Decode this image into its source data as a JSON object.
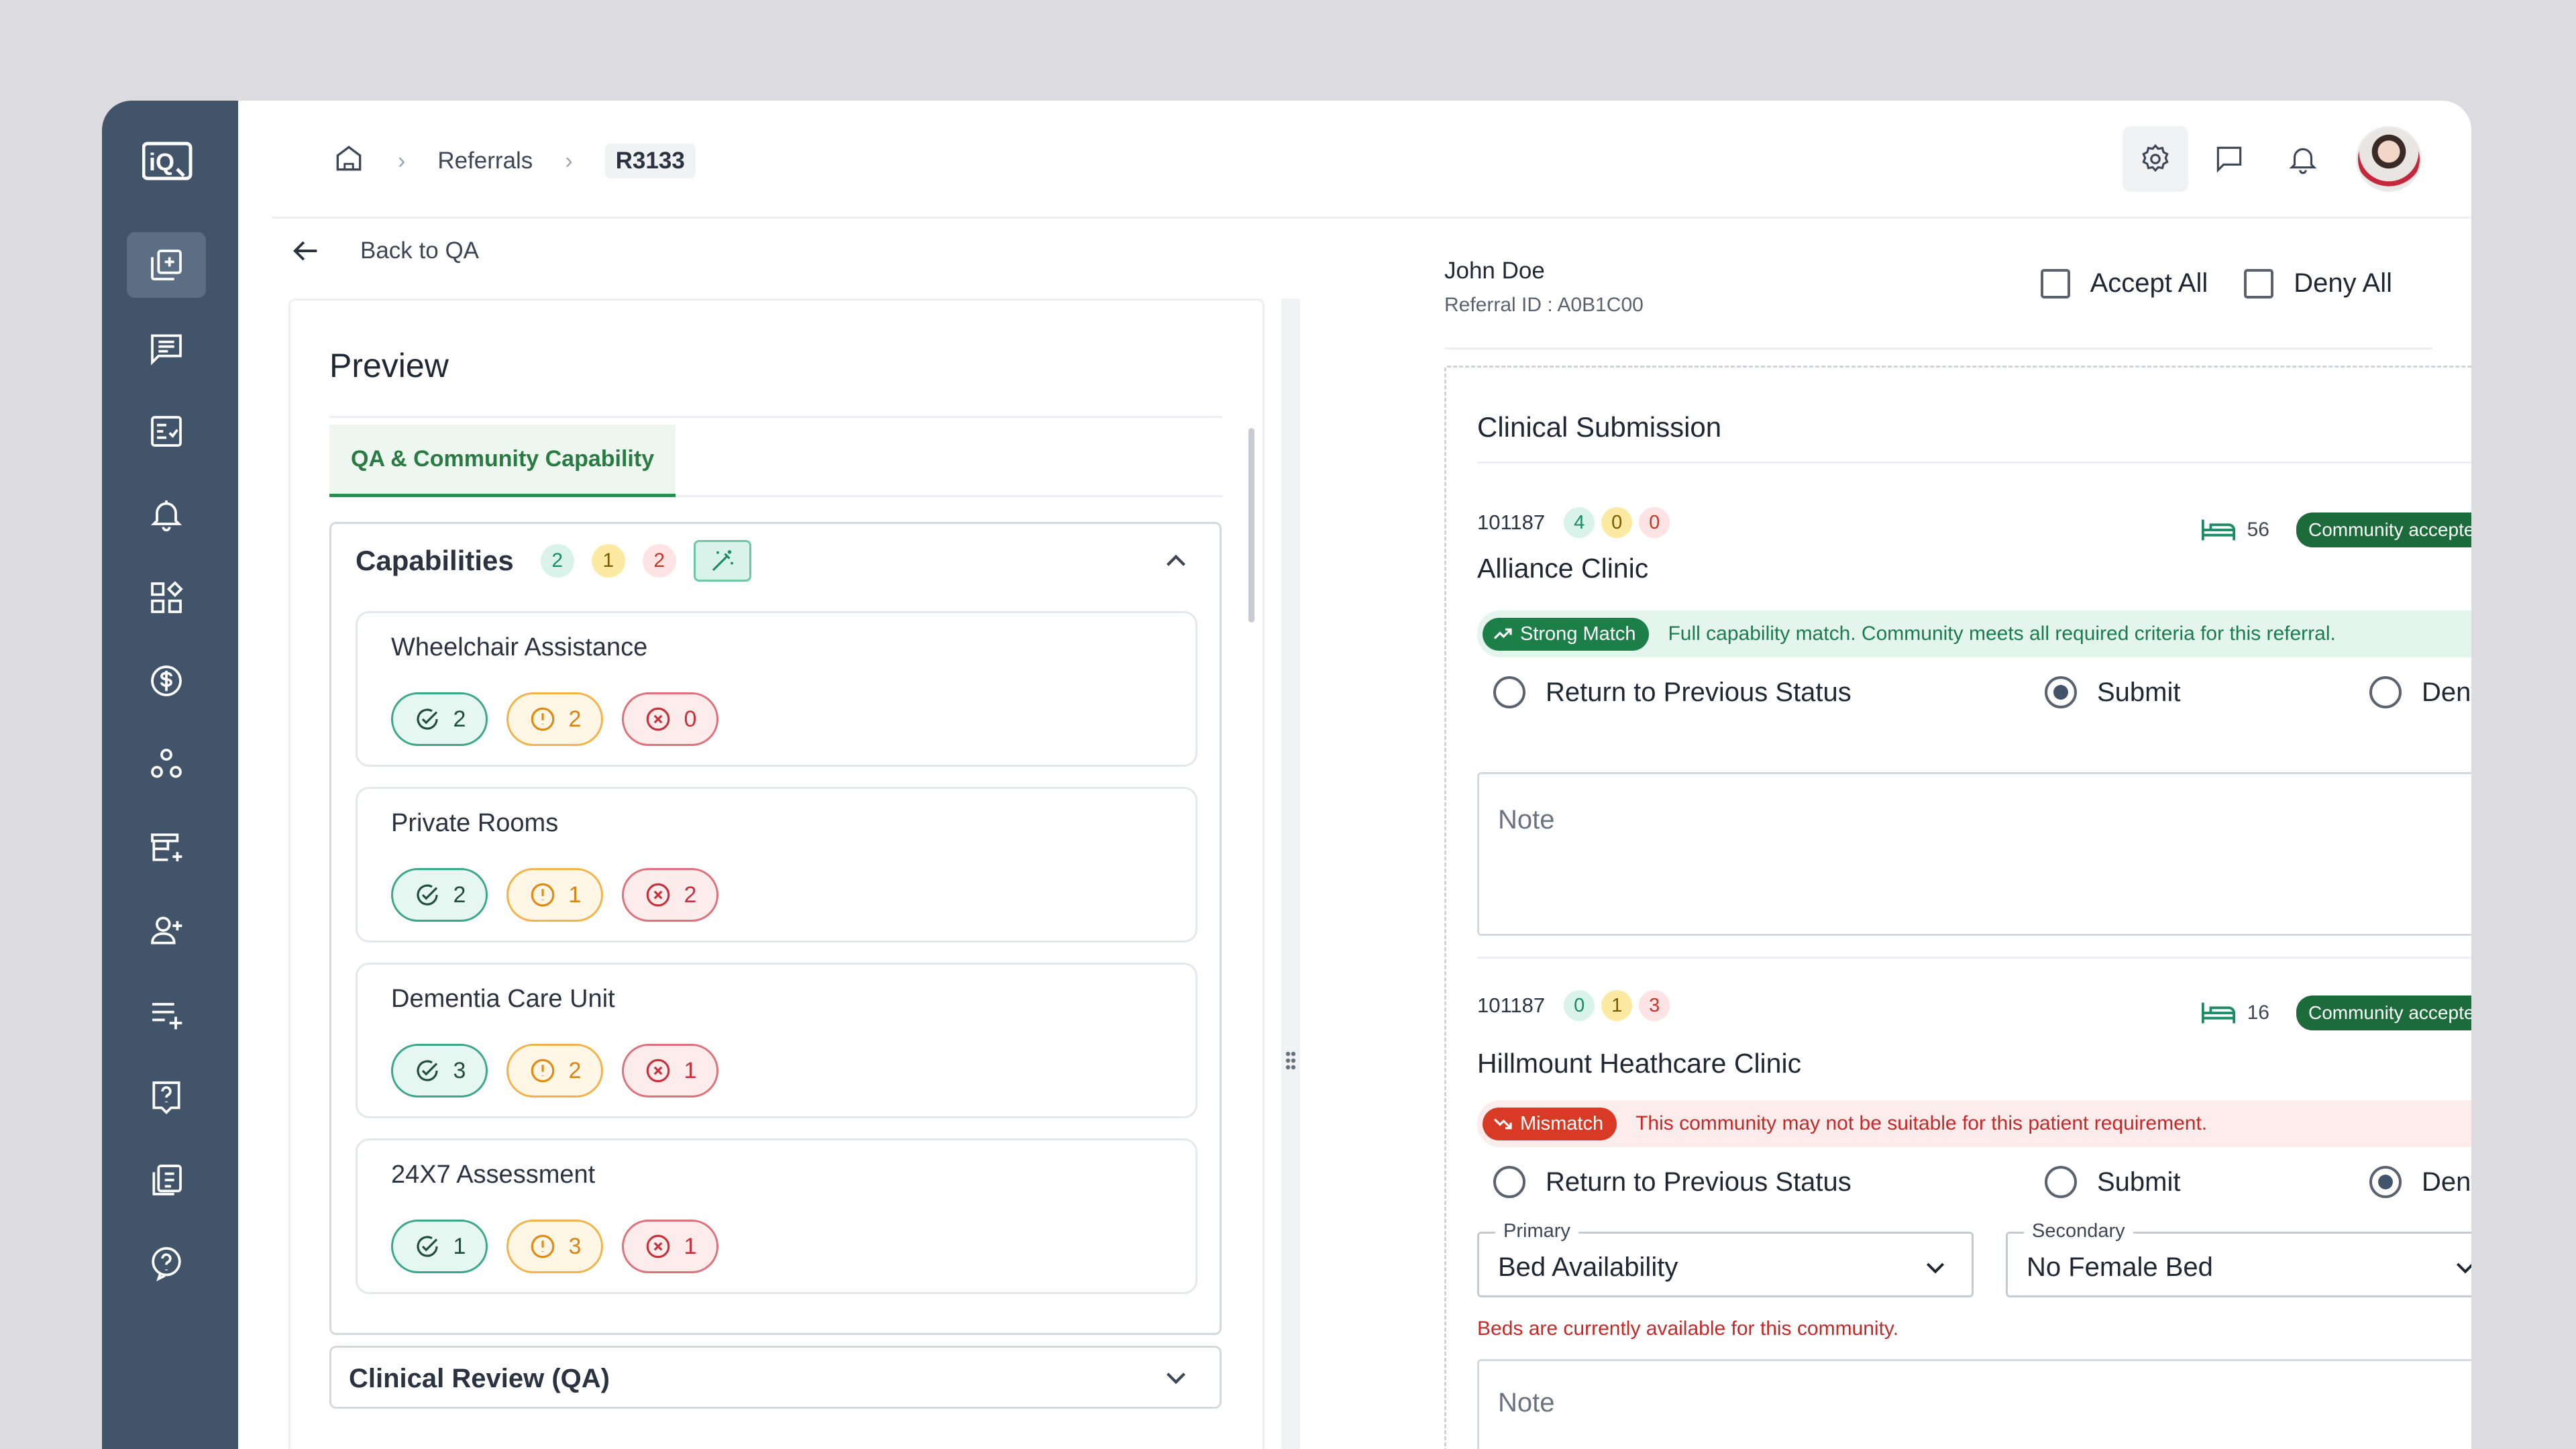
{
  "breadcrumb": {
    "home_icon": "home-icon",
    "items": [
      "Referrals",
      "R3133"
    ]
  },
  "back_label": "Back to QA",
  "sidebar_icons": [
    "add-document-icon",
    "messages-icon",
    "tasks-icon",
    "bell-icon",
    "widgets-icon",
    "dollar-icon",
    "community-icon",
    "store-add-icon",
    "add-user-icon",
    "list-add-icon",
    "help-box-icon",
    "report-icon",
    "help-circle-icon"
  ],
  "preview": {
    "title": "Preview",
    "tab": "QA & Community Capability",
    "capabilities": {
      "title": "Capabilities",
      "counts": [
        "2",
        "1",
        "2"
      ],
      "items": [
        {
          "name": "Wheelchair Assistance",
          "ok": "2",
          "warn": "2",
          "fail": "0"
        },
        {
          "name": "Private Rooms",
          "ok": "2",
          "warn": "1",
          "fail": "2"
        },
        {
          "name": "Dementia Care Unit",
          "ok": "3",
          "warn": "2",
          "fail": "1"
        },
        {
          "name": "24X7 Assessment",
          "ok": "1",
          "warn": "3",
          "fail": "1"
        }
      ]
    },
    "clinical_review": "Clinical Review (QA)"
  },
  "patient": {
    "name": "John Doe",
    "referral_id": "Referral ID : A0B1C00"
  },
  "bulk": {
    "accept_all": "Accept All",
    "deny_all": "Deny All"
  },
  "clinical": {
    "title": "Clinical Submission",
    "communities": [
      {
        "id": "101187",
        "counts": [
          "4",
          "0",
          "0"
        ],
        "name": "Alliance Clinic",
        "beds": "56",
        "status": "Community accepted",
        "match_chip": "Strong Match",
        "match_text": "Full capability match. Community meets all required criteria for this referral.",
        "options": [
          "Return to Previous Status",
          "Submit",
          "Deny"
        ],
        "selected": 1,
        "note_placeholder": "Note"
      },
      {
        "id": "101187",
        "counts": [
          "0",
          "1",
          "3"
        ],
        "name": "Hillmount Heathcare Clinic",
        "beds": "16",
        "status": "Community accepted",
        "match_chip": "Mismatch",
        "match_text": "This community may not be suitable for this patient requirement.",
        "options": [
          "Return to Previous Status",
          "Submit",
          "Deny"
        ],
        "selected": 2,
        "primary_label": "Primary",
        "primary_value": "Bed Availability",
        "secondary_label": "Secondary",
        "secondary_value": "No Female Bed",
        "error": "Beds are currently available for this community.",
        "note_placeholder": "Note"
      }
    ]
  },
  "colors": {
    "sidebar": "#41546a",
    "accent_green": "#1c6b3b",
    "danger": "#d93a25"
  }
}
